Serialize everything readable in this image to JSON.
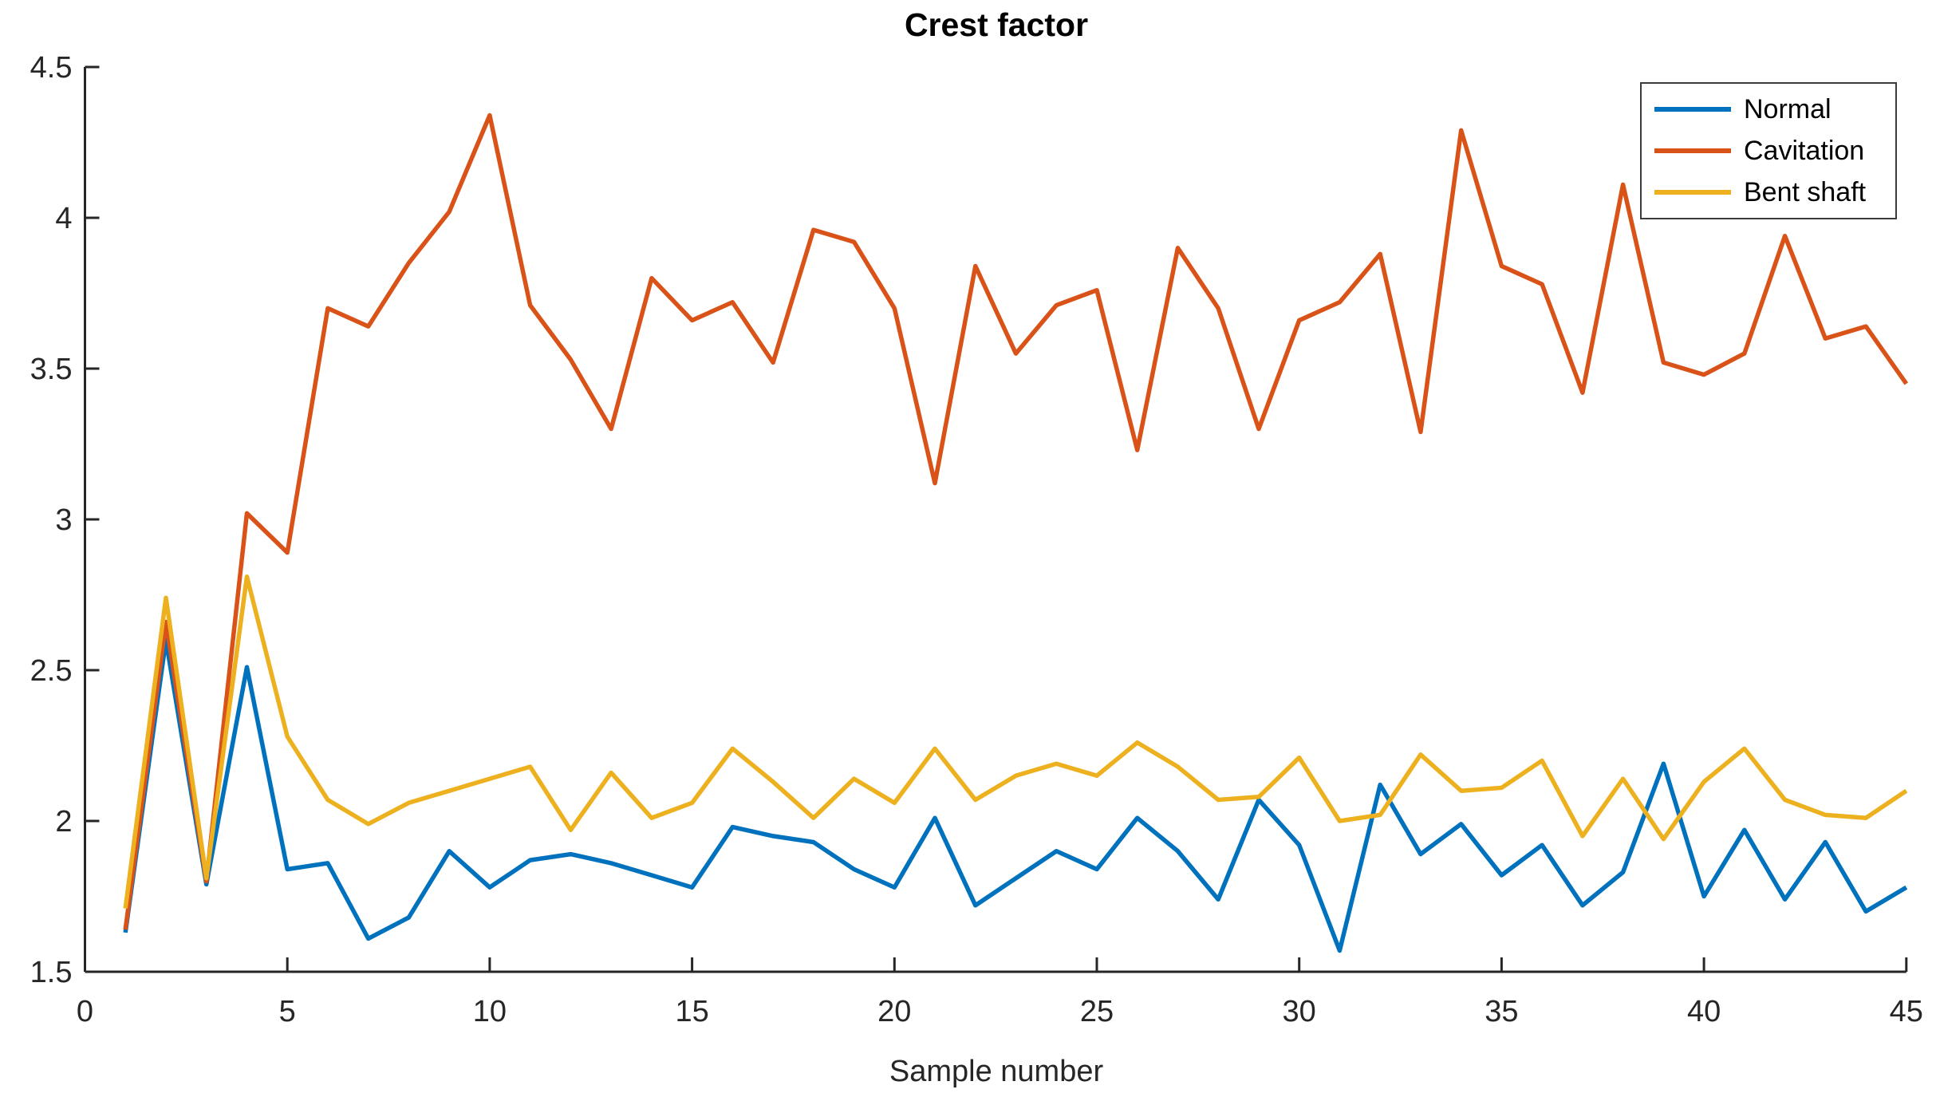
{
  "title": "Crest factor",
  "x_axis": {
    "label": "Sample number",
    "ticks": [
      0,
      5,
      10,
      15,
      20,
      25,
      30,
      35,
      40,
      45
    ],
    "min": 0,
    "max": 45
  },
  "y_axis": {
    "label": "",
    "ticks": [
      1.5,
      2,
      2.5,
      3,
      3.5,
      4,
      4.5
    ],
    "min": 1.5,
    "max": 4.5
  },
  "legend": {
    "position": "northeast",
    "items": [
      {
        "label": "Normal",
        "color": "#0072BD"
      },
      {
        "label": "Cavitation",
        "color": "#D95319"
      },
      {
        "label": "Bent shaft",
        "color": "#EDB120"
      }
    ]
  },
  "colors": {
    "axis": "#262626",
    "background": "#ffffff",
    "normal": "#0072BD",
    "cavitation": "#D95319",
    "bent_shaft": "#EDB120"
  },
  "chart_data": {
    "type": "line",
    "title": "Crest factor",
    "xlabel": "Sample number",
    "ylabel": "",
    "xlim": [
      0,
      45
    ],
    "ylim": [
      1.5,
      4.5
    ],
    "xticks": [
      0,
      5,
      10,
      15,
      20,
      25,
      30,
      35,
      40,
      45
    ],
    "yticks": [
      1.5,
      2,
      2.5,
      3,
      3.5,
      4,
      4.5
    ],
    "grid": false,
    "legend_position": "northeast",
    "x": [
      1,
      2,
      3,
      4,
      5,
      6,
      7,
      8,
      9,
      10,
      11,
      12,
      13,
      14,
      15,
      16,
      17,
      18,
      19,
      20,
      21,
      22,
      23,
      24,
      25,
      26,
      27,
      28,
      29,
      30,
      31,
      32,
      33,
      34,
      35,
      36,
      37,
      38,
      39,
      40,
      41,
      42,
      43,
      44,
      45
    ],
    "series": [
      {
        "name": "Normal",
        "color": "#0072BD",
        "values": [
          1.63,
          2.6,
          1.79,
          2.51,
          1.84,
          1.86,
          1.61,
          1.68,
          1.9,
          1.78,
          1.87,
          1.89,
          1.86,
          1.82,
          1.78,
          1.98,
          1.95,
          1.93,
          1.84,
          1.78,
          2.01,
          1.72,
          1.81,
          1.9,
          1.84,
          2.01,
          1.9,
          1.74,
          2.07,
          1.92,
          1.57,
          2.12,
          1.89,
          1.99,
          1.82,
          1.92,
          1.72,
          1.83,
          2.19,
          1.75,
          1.97,
          1.74,
          1.93,
          1.7,
          1.78
        ]
      },
      {
        "name": "Cavitation",
        "color": "#D95319",
        "values": [
          1.64,
          2.66,
          1.8,
          3.02,
          2.89,
          3.7,
          3.64,
          3.85,
          4.02,
          4.34,
          3.71,
          3.53,
          3.3,
          3.8,
          3.66,
          3.72,
          3.52,
          3.96,
          3.92,
          3.7,
          3.12,
          3.84,
          3.55,
          3.71,
          3.76,
          3.23,
          3.9,
          3.7,
          3.3,
          3.66,
          3.72,
          3.88,
          3.29,
          4.29,
          3.84,
          3.78,
          3.42,
          4.11,
          3.52,
          3.48,
          3.55,
          3.94,
          3.6,
          3.64,
          3.45
        ]
      },
      {
        "name": "Bent shaft",
        "color": "#EDB120",
        "values": [
          1.71,
          2.74,
          1.81,
          2.81,
          2.28,
          2.07,
          1.99,
          2.06,
          2.1,
          2.14,
          2.18,
          1.97,
          2.16,
          2.01,
          2.06,
          2.24,
          2.13,
          2.01,
          2.14,
          2.06,
          2.24,
          2.07,
          2.15,
          2.19,
          2.15,
          2.26,
          2.18,
          2.07,
          2.08,
          2.21,
          2.0,
          2.02,
          2.22,
          2.1,
          2.11,
          2.2,
          1.95,
          2.14,
          1.94,
          2.13,
          2.24,
          2.07,
          2.02,
          2.01,
          2.1
        ]
      }
    ]
  }
}
